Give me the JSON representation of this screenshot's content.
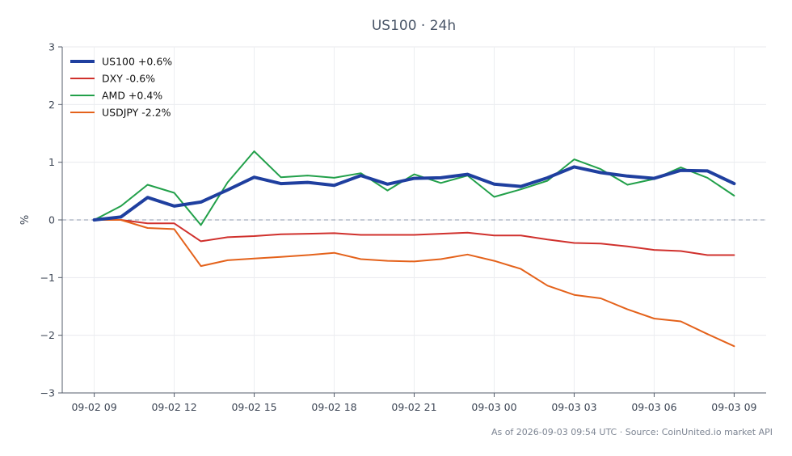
{
  "chart_data": {
    "type": "line",
    "title": "US100 · 24h",
    "ylabel": "%",
    "xlabel": "",
    "ylim": [
      -3,
      3
    ],
    "yticks": [
      3,
      2,
      1,
      0,
      -1,
      -2,
      -3
    ],
    "ytick_labels": [
      "3",
      "2",
      "1",
      "0",
      "−1",
      "−2",
      "−3"
    ],
    "x_tick_labels": [
      "09-02 09",
      "09-02 12",
      "09-02 15",
      "09-02 18",
      "09-02 21",
      "09-03 00",
      "09-03 03",
      "09-03 06",
      "09-03 09"
    ],
    "x_tick_hours": [
      0,
      3,
      6,
      9,
      12,
      15,
      18,
      21,
      24
    ],
    "xlim_hours": [
      -1.2,
      25.2
    ],
    "grid": true,
    "zero_line": true,
    "legend_position": "top-left",
    "x_hours": [
      0,
      1,
      2,
      3,
      4,
      5,
      6,
      7,
      8,
      9,
      10,
      11,
      12,
      13,
      14,
      15,
      16,
      17,
      18,
      19,
      20,
      21,
      22,
      23,
      24
    ],
    "series": [
      {
        "name": "US100 +0.6%",
        "color": "#1f3f9f",
        "width": 4,
        "values": [
          0.0,
          0.05,
          0.39,
          0.24,
          0.31,
          0.52,
          0.74,
          0.63,
          0.65,
          0.6,
          0.77,
          0.62,
          0.72,
          0.73,
          0.79,
          0.62,
          0.58,
          0.73,
          0.92,
          0.82,
          0.76,
          0.72,
          0.86,
          0.85,
          0.63
        ]
      },
      {
        "name": "DXY -0.6%",
        "color": "#d0312d",
        "width": 2,
        "values": [
          0.0,
          0.0,
          -0.06,
          -0.06,
          -0.37,
          -0.3,
          -0.28,
          -0.25,
          -0.24,
          -0.23,
          -0.26,
          -0.26,
          -0.26,
          -0.24,
          -0.22,
          -0.27,
          -0.27,
          -0.34,
          -0.4,
          -0.41,
          -0.46,
          -0.52,
          -0.54,
          -0.61,
          -0.61
        ]
      },
      {
        "name": "AMD +0.4%",
        "color": "#22a04a",
        "width": 2,
        "values": [
          0.0,
          0.24,
          0.61,
          0.47,
          -0.09,
          0.65,
          1.19,
          0.74,
          0.77,
          0.73,
          0.81,
          0.51,
          0.79,
          0.64,
          0.77,
          0.4,
          0.53,
          0.68,
          1.05,
          0.88,
          0.61,
          0.71,
          0.91,
          0.73,
          0.42
        ]
      },
      {
        "name": "USDJPY -2.2%",
        "color": "#e4621b",
        "width": 2,
        "values": [
          0.0,
          0.0,
          -0.14,
          -0.16,
          -0.8,
          -0.7,
          -0.67,
          -0.64,
          -0.61,
          -0.57,
          -0.68,
          -0.71,
          -0.72,
          -0.68,
          -0.6,
          -0.71,
          -0.85,
          -1.14,
          -1.3,
          -1.36,
          -1.55,
          -1.71,
          -1.76,
          -1.98,
          -2.19
        ]
      }
    ],
    "footer": "As of 2026-09-03 09:54 UTC · Source: CoinUnited.io market API"
  }
}
